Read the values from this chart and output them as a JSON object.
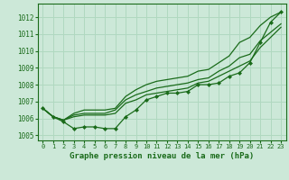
{
  "x": [
    0,
    1,
    2,
    3,
    4,
    5,
    6,
    7,
    8,
    9,
    10,
    11,
    12,
    13,
    14,
    15,
    16,
    17,
    18,
    19,
    20,
    21,
    22,
    23
  ],
  "line_markers": [
    1006.6,
    1006.1,
    1005.8,
    1005.4,
    1005.5,
    1005.5,
    1005.4,
    1005.4,
    1006.1,
    1006.5,
    1007.1,
    1007.3,
    1007.5,
    1007.5,
    1007.6,
    1008.0,
    1008.0,
    1008.1,
    1008.5,
    1008.7,
    1009.3,
    1010.5,
    1011.7,
    1012.3
  ],
  "line_mid1": [
    1006.6,
    1006.1,
    1005.9,
    1006.1,
    1006.2,
    1006.2,
    1006.2,
    1006.3,
    1006.9,
    1007.1,
    1007.4,
    1007.5,
    1007.6,
    1007.7,
    1007.8,
    1008.1,
    1008.2,
    1008.5,
    1008.8,
    1009.1,
    1009.4,
    1010.2,
    1010.8,
    1011.4
  ],
  "line_mid2": [
    1006.6,
    1006.1,
    1005.9,
    1006.2,
    1006.3,
    1006.3,
    1006.3,
    1006.5,
    1007.1,
    1007.4,
    1007.6,
    1007.8,
    1007.9,
    1008.0,
    1008.1,
    1008.3,
    1008.4,
    1008.8,
    1009.1,
    1009.6,
    1009.8,
    1010.6,
    1011.1,
    1011.6
  ],
  "line_top": [
    1006.6,
    1006.1,
    1005.9,
    1006.3,
    1006.5,
    1006.5,
    1006.5,
    1006.6,
    1007.3,
    1007.7,
    1008.0,
    1008.2,
    1008.3,
    1008.4,
    1008.5,
    1008.8,
    1008.9,
    1009.3,
    1009.7,
    1010.5,
    1010.8,
    1011.5,
    1012.0,
    1012.3
  ],
  "ylim": [
    1004.7,
    1012.8
  ],
  "yticks": [
    1005,
    1006,
    1007,
    1008,
    1009,
    1010,
    1011,
    1012
  ],
  "xlabel": "Graphe pression niveau de la mer (hPa)",
  "line_color": "#1a6b1a",
  "bg_color": "#cce8d8",
  "grid_color": "#b0d8c0",
  "text_color": "#1a6b1a"
}
